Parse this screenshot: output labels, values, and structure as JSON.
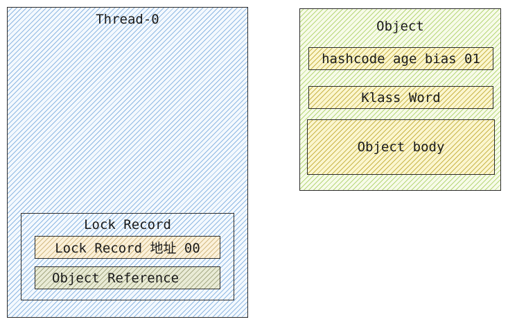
{
  "thread": {
    "title": "Thread-0",
    "lock_record": {
      "title": "Lock Record",
      "fields": [
        "Lock Record 地址 00",
        "Object Reference"
      ]
    }
  },
  "object": {
    "title": "Object",
    "fields": [
      "hashcode age bias 01",
      "Klass Word",
      "Object body"
    ]
  }
}
